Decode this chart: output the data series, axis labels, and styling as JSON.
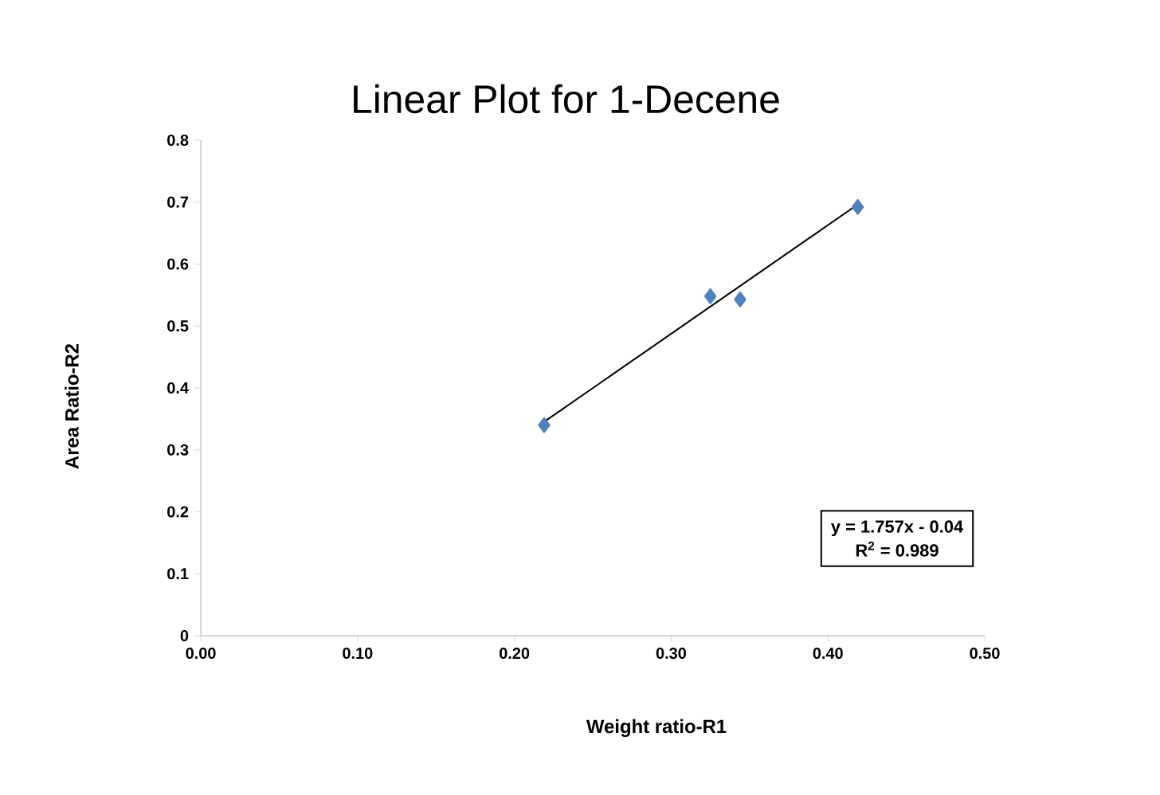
{
  "chart_data": {
    "type": "scatter",
    "title": "Linear Plot for 1-Decene",
    "xlabel": "Weight ratio-R1",
    "ylabel": "Area  Ratio-R2",
    "xlim": [
      0,
      0.5
    ],
    "ylim": [
      0,
      0.8
    ],
    "xticks": [
      {
        "value": 0,
        "label": "0.00"
      },
      {
        "value": 0.1,
        "label": "0.10"
      },
      {
        "value": 0.2,
        "label": "0.20"
      },
      {
        "value": 0.3,
        "label": "0.30"
      },
      {
        "value": 0.4,
        "label": "0.40"
      },
      {
        "value": 0.5,
        "label": "0.50"
      }
    ],
    "yticks": [
      0,
      0.1,
      0.2,
      0.3,
      0.4,
      0.5,
      0.6,
      0.7,
      0.8
    ],
    "marker": "diamond",
    "grid": false,
    "series": [
      {
        "color": "#4f81bd",
        "x": [
          0.219,
          0.325,
          0.344,
          0.419
        ],
        "values": [
          0.34,
          0.548,
          0.543,
          0.692
        ]
      },
      {
        "type": "line",
        "color": "#000000",
        "marker": "none",
        "line_style": "solid",
        "x": [
          0.22,
          0.42
        ],
        "values": [
          0.347,
          0.698
        ]
      }
    ],
    "annotations": [
      "y = 1.757x  - 0.04",
      "R$^{2}$ = 0.989"
    ]
  }
}
